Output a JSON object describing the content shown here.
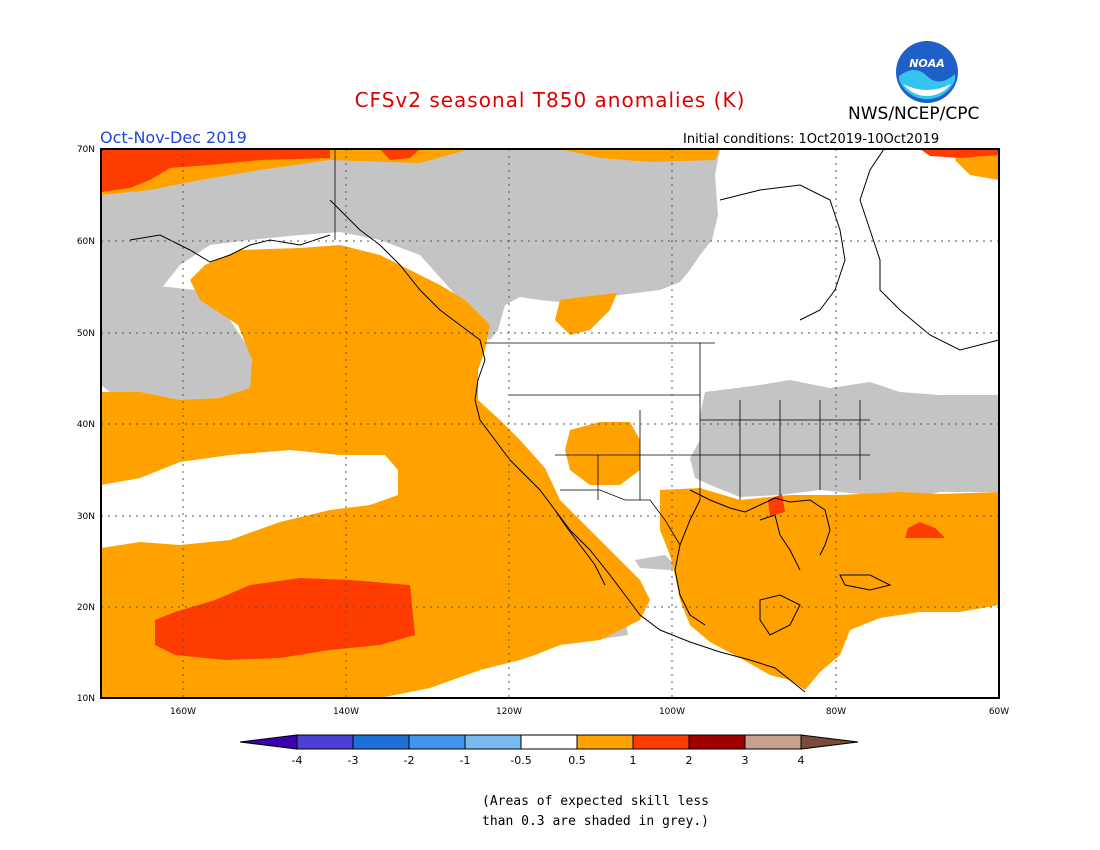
{
  "header": {
    "title": "CFSv2 seasonal T850 anomalies (K)",
    "agency": "NWS/NCEP/CPC",
    "season": "Oct-Nov-Dec 2019",
    "initial_conditions": "Initial conditions: 1Oct2019-10Oct2019",
    "logo_text": "NOAA"
  },
  "colors": {
    "title": "#dd0000",
    "season": "#2244dd",
    "grey": "#c4c4c4",
    "orange": "#ffa200",
    "red": "#ff3c00",
    "ocean_white": "#ffffff",
    "noaa_blue": "#1f5fc8"
  },
  "map": {
    "lat_labels": [
      "70N",
      "60N",
      "50N",
      "40N",
      "30N",
      "20N",
      "10N"
    ],
    "lon_labels": [
      "160W",
      "140W",
      "120W",
      "100W",
      "80W",
      "60W"
    ],
    "lon_range": [
      -170,
      -60
    ],
    "lat_range": [
      10,
      70
    ]
  },
  "legend": {
    "tick_labels": [
      "-4",
      "-3",
      "-2",
      "-1",
      "-0.5",
      "0.5",
      "1",
      "2",
      "3",
      "4"
    ],
    "colors": [
      "#3a00b0",
      "#4b3fd6",
      "#1f6fd8",
      "#3f97f0",
      "#78baf0",
      "#ffffff",
      "#ffa200",
      "#ff3c00",
      "#a00000",
      "#c8a08c",
      "#7a4a3a"
    ]
  },
  "footnote": {
    "line1": "(Areas of expected skill less",
    "line2": "than 0.3 are shaded in grey.)"
  }
}
